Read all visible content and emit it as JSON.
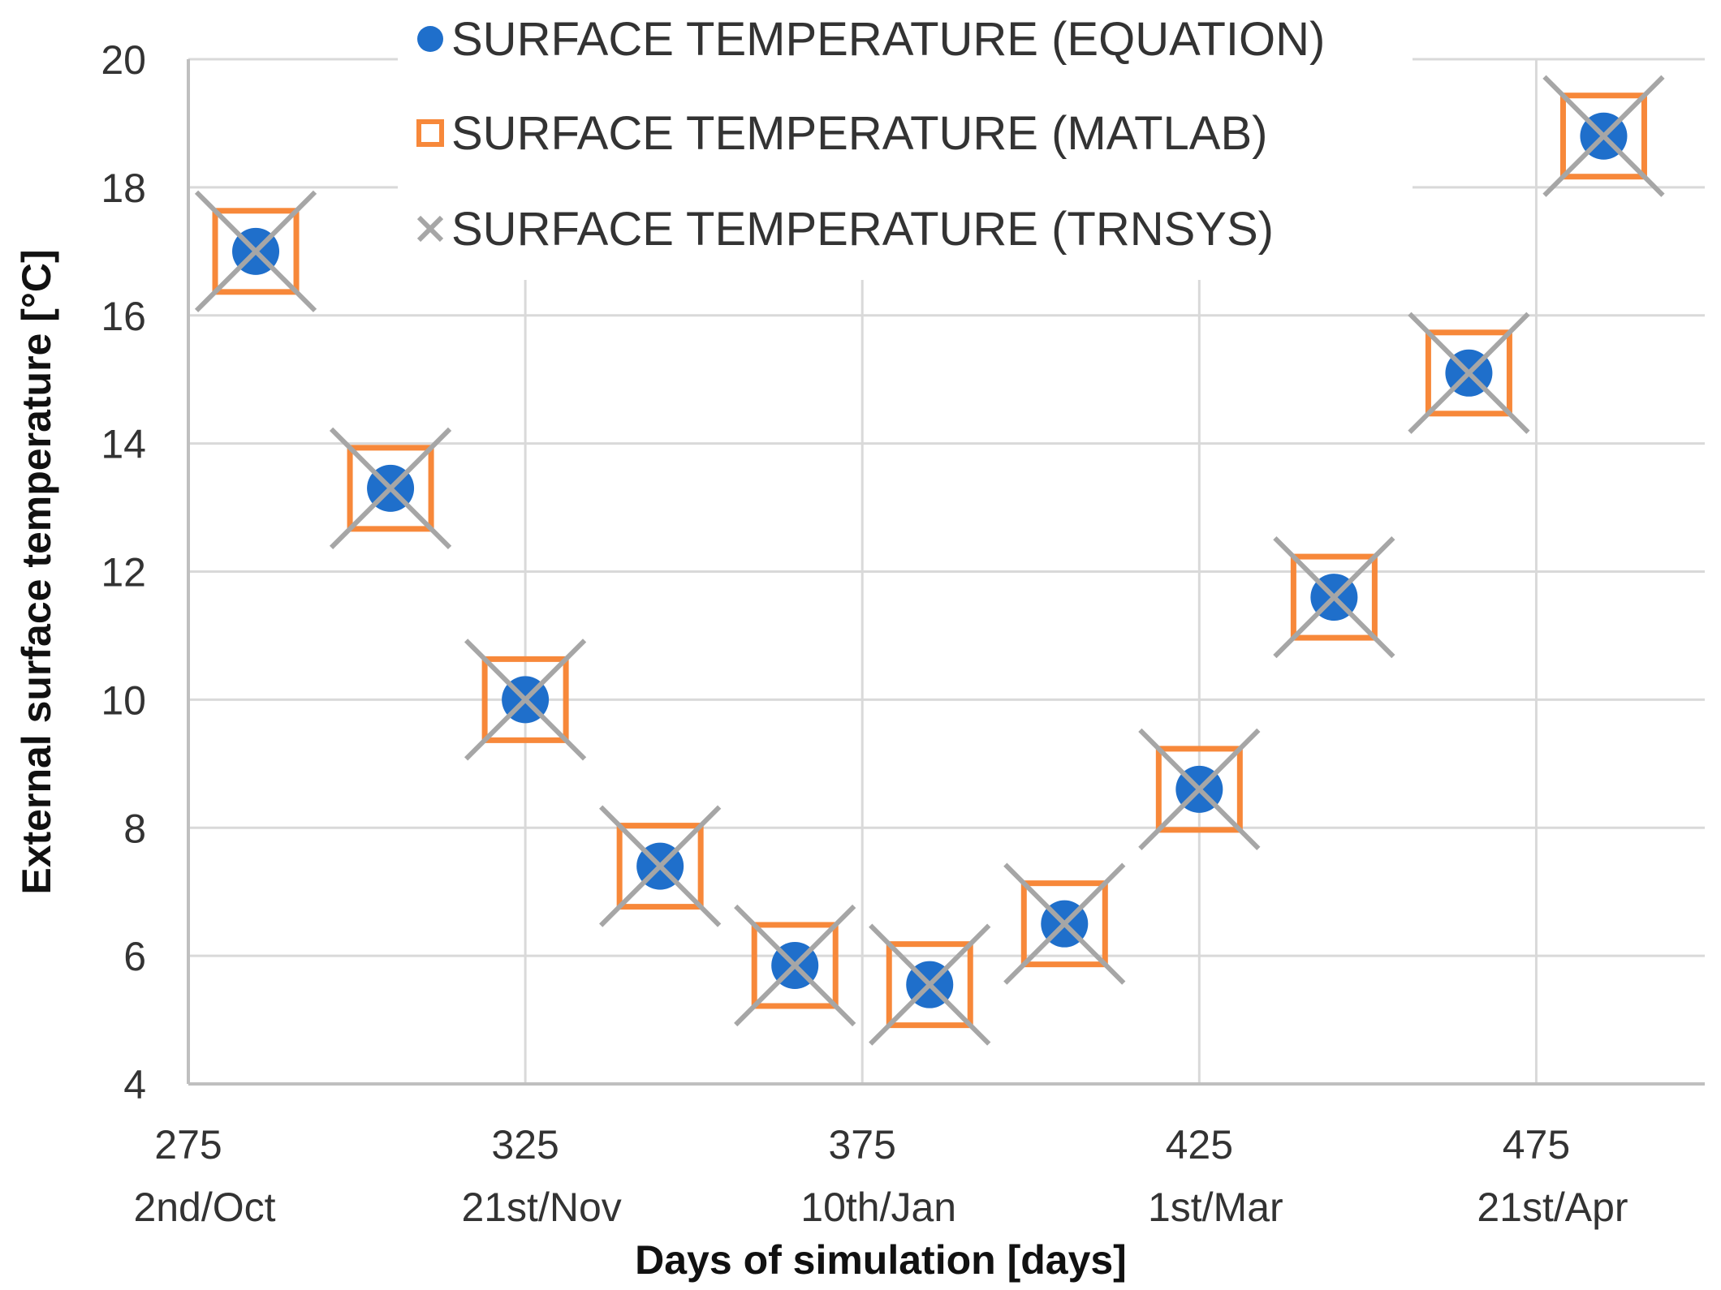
{
  "chart_data": {
    "type": "scatter",
    "xlabel": "Days of simulation [days]",
    "ylabel": "External surface temperature [°C]",
    "xlim": [
      275,
      500
    ],
    "ylim": [
      4,
      20
    ],
    "x_ticks": [
      {
        "value": 275,
        "label": "275",
        "sublabel": "2nd/Oct"
      },
      {
        "value": 325,
        "label": "325",
        "sublabel": "21st/Nov"
      },
      {
        "value": 375,
        "label": "375",
        "sublabel": "10th/Jan"
      },
      {
        "value": 425,
        "label": "425",
        "sublabel": "1st/Mar"
      },
      {
        "value": 475,
        "label": "475",
        "sublabel": "21st/Apr"
      }
    ],
    "y_ticks": [
      4,
      6,
      8,
      10,
      12,
      14,
      16,
      18,
      20
    ],
    "grid": true,
    "legend_position": "top",
    "x": [
      285,
      305,
      325,
      345,
      365,
      385,
      405,
      425,
      445,
      465,
      485
    ],
    "series": [
      {
        "name": "SURFACE TEMPERATURE (EQUATION)",
        "marker": "circle",
        "color": "#1f6fcb",
        "values": [
          17.0,
          13.3,
          10.0,
          7.4,
          5.85,
          5.55,
          6.5,
          8.6,
          11.6,
          15.1,
          18.8
        ]
      },
      {
        "name": "SURFACE TEMPERATURE (MATLAB)",
        "marker": "square",
        "color": "#f7883a",
        "values": [
          17.0,
          13.3,
          10.0,
          7.4,
          5.85,
          5.55,
          6.5,
          8.6,
          11.6,
          15.1,
          18.8
        ]
      },
      {
        "name": "SURFACE TEMPERATURE (TRNSYS)",
        "marker": "x",
        "color": "#a6a6a6",
        "values": [
          17.0,
          13.3,
          10.0,
          7.4,
          5.85,
          5.55,
          6.5,
          8.6,
          11.6,
          15.1,
          18.8
        ]
      }
    ]
  }
}
